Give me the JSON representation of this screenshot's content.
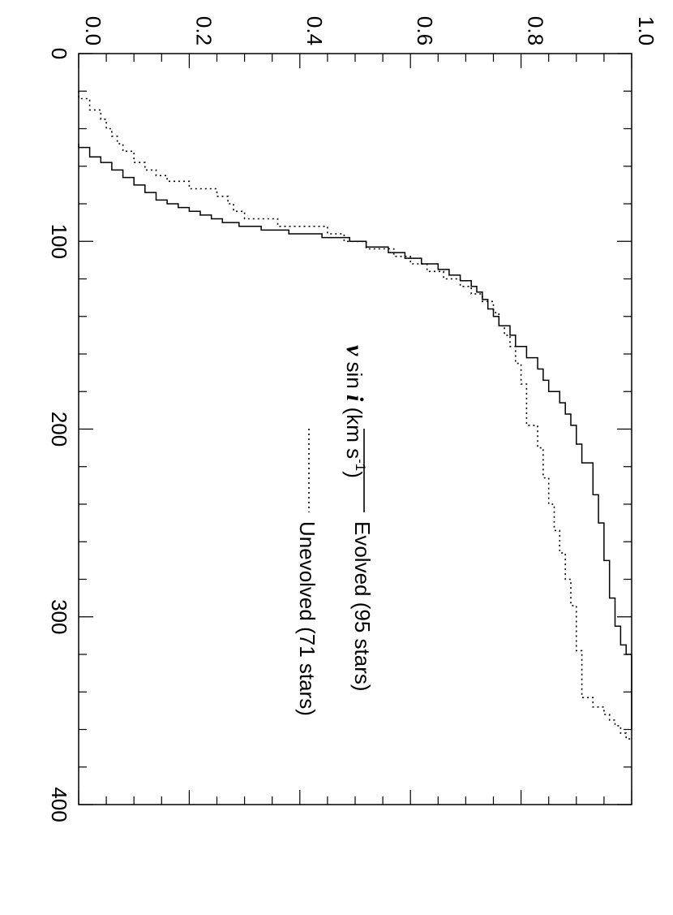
{
  "chart_data": {
    "type": "line",
    "step": true,
    "orientation": "rotated-90-clockwise",
    "xlabel": {
      "v": "v",
      "sin": " sin ",
      "i": "i",
      "unit": " (km s",
      "sup": "-1",
      "close": ")"
    },
    "ylabel": "",
    "xlim": [
      0,
      400
    ],
    "ylim": [
      0,
      1
    ],
    "x_ticks": [
      "0",
      "100",
      "200",
      "300",
      "400"
    ],
    "y_ticks": [
      "0.0",
      "0.2",
      "0.4",
      "0.6",
      "0.8",
      "1.0"
    ],
    "series": [
      {
        "name": "Evolved (95 stars)",
        "style": "solid",
        "points": [
          [
            48,
            0
          ],
          [
            50,
            0.02
          ],
          [
            55,
            0.04
          ],
          [
            58,
            0.06
          ],
          [
            62,
            0.08
          ],
          [
            66,
            0.1
          ],
          [
            70,
            0.12
          ],
          [
            74,
            0.14
          ],
          [
            78,
            0.16
          ],
          [
            80,
            0.18
          ],
          [
            82,
            0.2
          ],
          [
            84,
            0.22
          ],
          [
            86,
            0.24
          ],
          [
            88,
            0.26
          ],
          [
            90,
            0.29
          ],
          [
            92,
            0.33
          ],
          [
            94,
            0.38
          ],
          [
            96,
            0.44
          ],
          [
            98,
            0.49
          ],
          [
            100,
            0.52
          ],
          [
            103,
            0.56
          ],
          [
            106,
            0.59
          ],
          [
            109,
            0.62
          ],
          [
            112,
            0.65
          ],
          [
            115,
            0.67
          ],
          [
            118,
            0.69
          ],
          [
            121,
            0.71
          ],
          [
            124,
            0.72
          ],
          [
            127,
            0.73
          ],
          [
            131,
            0.74
          ],
          [
            136,
            0.75
          ],
          [
            140,
            0.76
          ],
          [
            145,
            0.78
          ],
          [
            150,
            0.79
          ],
          [
            156,
            0.81
          ],
          [
            162,
            0.83
          ],
          [
            168,
            0.84
          ],
          [
            174,
            0.85
          ],
          [
            180,
            0.87
          ],
          [
            186,
            0.88
          ],
          [
            192,
            0.89
          ],
          [
            198,
            0.9
          ],
          [
            208,
            0.91
          ],
          [
            218,
            0.93
          ],
          [
            235,
            0.94
          ],
          [
            250,
            0.95
          ],
          [
            270,
            0.96
          ],
          [
            290,
            0.97
          ],
          [
            305,
            0.98
          ],
          [
            315,
            0.99
          ],
          [
            320,
            1.0
          ],
          [
            360,
            1.0
          ]
        ]
      },
      {
        "name": "Unevolved (71 stars)",
        "style": "dotted",
        "points": [
          [
            20,
            0
          ],
          [
            24,
            0.02
          ],
          [
            30,
            0.04
          ],
          [
            35,
            0.05
          ],
          [
            40,
            0.06
          ],
          [
            44,
            0.07
          ],
          [
            48,
            0.08
          ],
          [
            52,
            0.1
          ],
          [
            58,
            0.12
          ],
          [
            62,
            0.14
          ],
          [
            65,
            0.16
          ],
          [
            68,
            0.2
          ],
          [
            72,
            0.25
          ],
          [
            76,
            0.27
          ],
          [
            80,
            0.28
          ],
          [
            84,
            0.3
          ],
          [
            88,
            0.36
          ],
          [
            92,
            0.45
          ],
          [
            96,
            0.48
          ],
          [
            100,
            0.52
          ],
          [
            104,
            0.57
          ],
          [
            108,
            0.6
          ],
          [
            112,
            0.63
          ],
          [
            116,
            0.66
          ],
          [
            120,
            0.69
          ],
          [
            124,
            0.71
          ],
          [
            128,
            0.73
          ],
          [
            132,
            0.75
          ],
          [
            138,
            0.76
          ],
          [
            145,
            0.77
          ],
          [
            150,
            0.78
          ],
          [
            156,
            0.79
          ],
          [
            165,
            0.8
          ],
          [
            176,
            0.81
          ],
          [
            190,
            0.81
          ],
          [
            198,
            0.83
          ],
          [
            210,
            0.84
          ],
          [
            226,
            0.85
          ],
          [
            240,
            0.86
          ],
          [
            254,
            0.87
          ],
          [
            266,
            0.88
          ],
          [
            280,
            0.89
          ],
          [
            294,
            0.9
          ],
          [
            306,
            0.9
          ],
          [
            318,
            0.91
          ],
          [
            338,
            0.91
          ],
          [
            343,
            0.93
          ],
          [
            348,
            0.95
          ],
          [
            352,
            0.96
          ],
          [
            355,
            0.97
          ],
          [
            358,
            0.98
          ],
          [
            362,
            0.99
          ],
          [
            365,
            1.0
          ]
        ]
      }
    ],
    "legend_position": "inside-right"
  }
}
